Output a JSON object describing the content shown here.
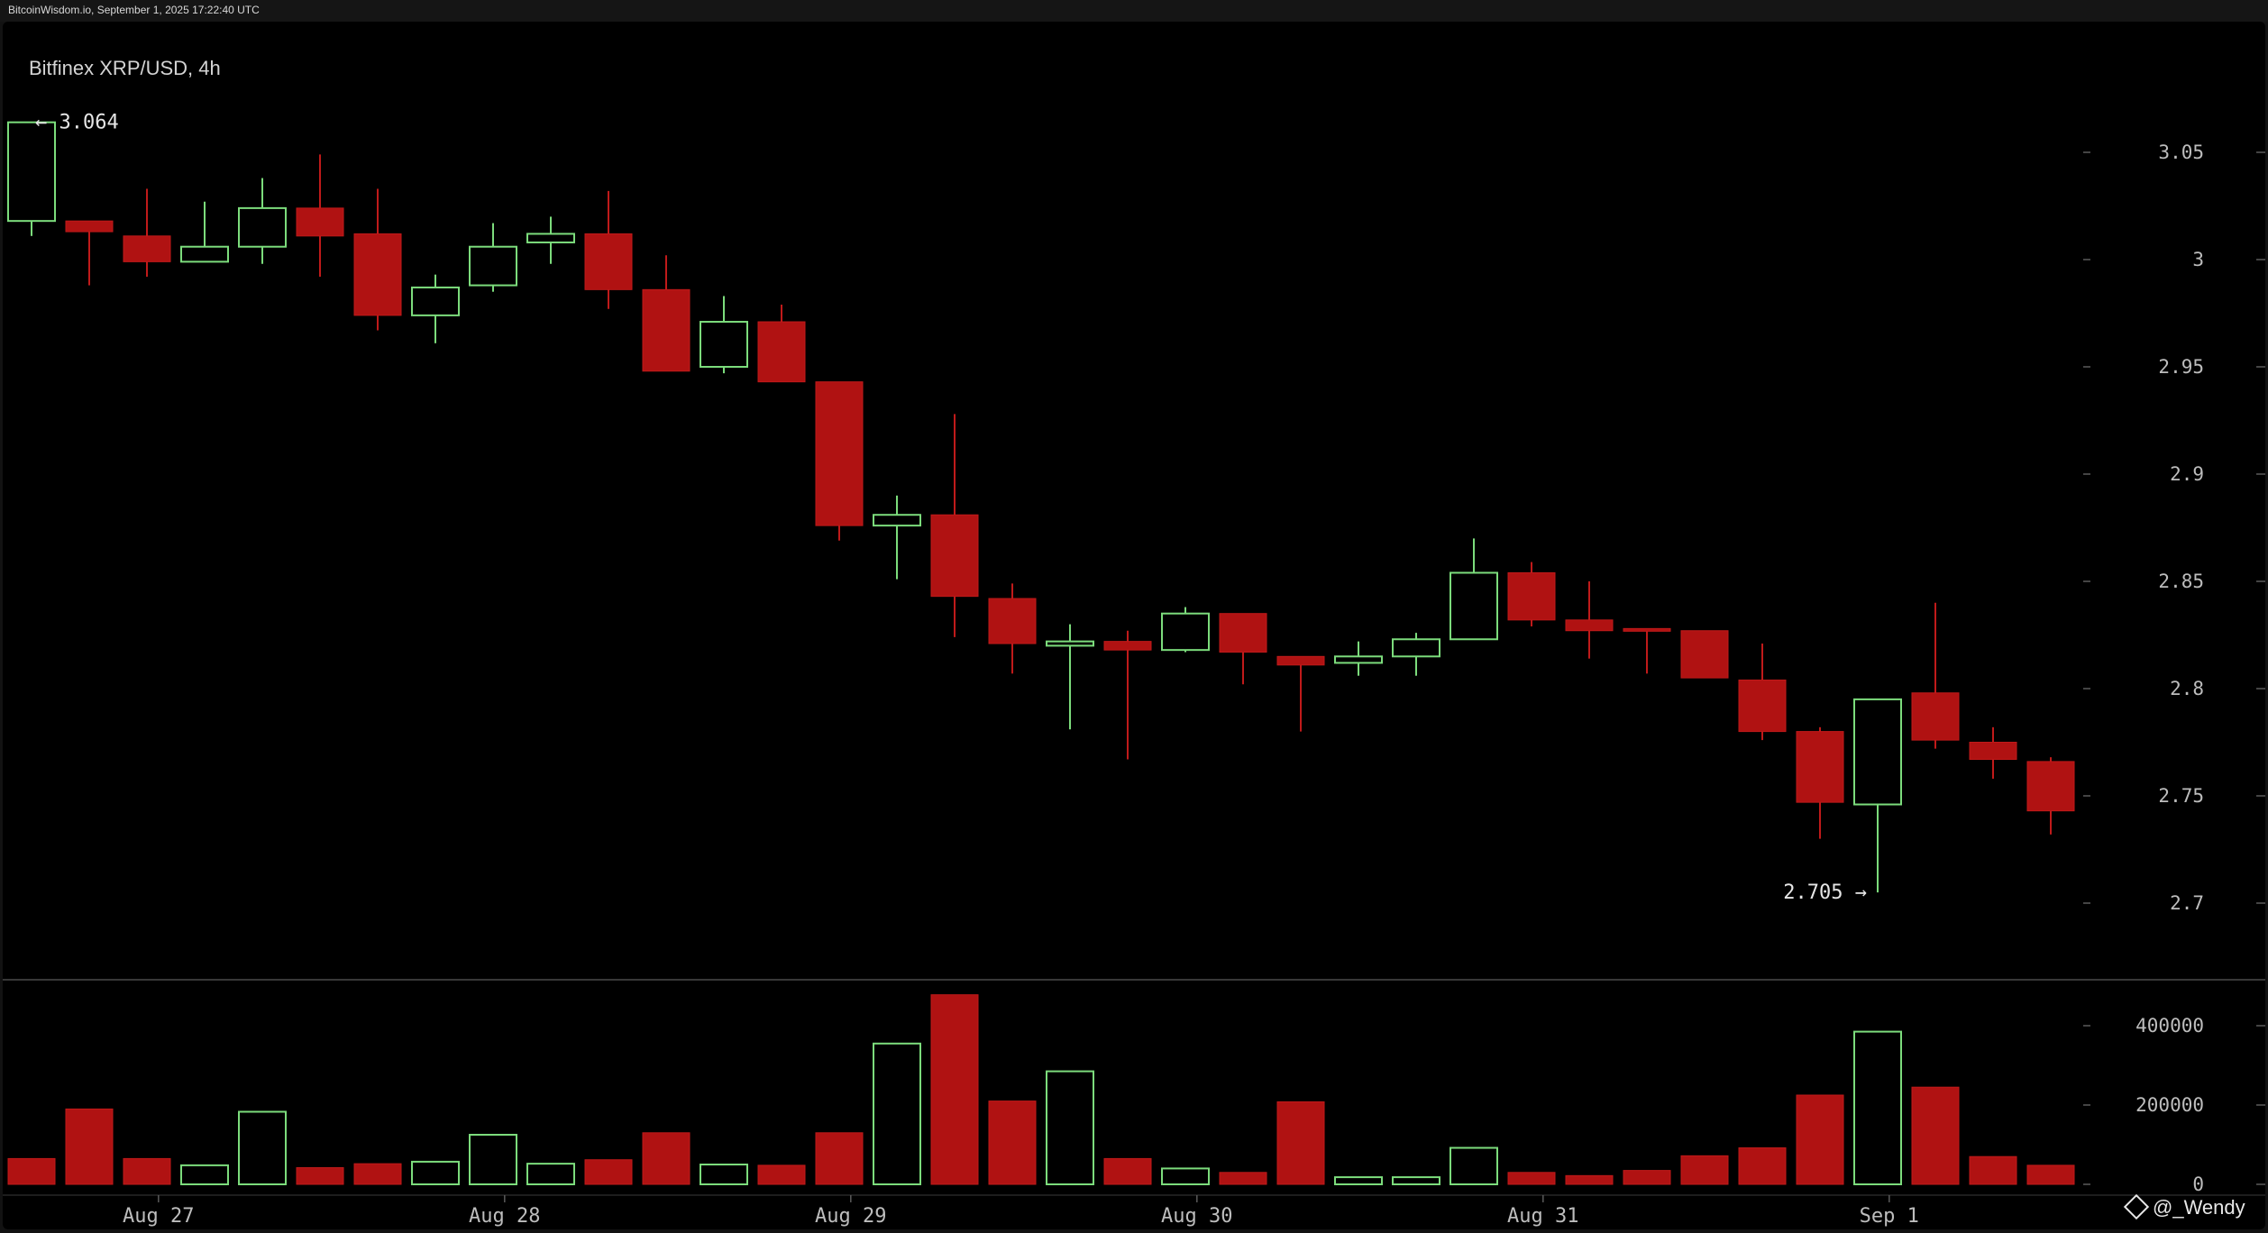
{
  "header": {
    "caption": "BitcoinWisdom.io, September 1, 2025 17:22:40 UTC"
  },
  "title": "Bitfinex XRP/USD, 4h",
  "watermark": "@_Wendy",
  "colors": {
    "up": "#7cdc7c",
    "down": "#b01212",
    "background": "#000000",
    "axis_text": "#bdbdbd"
  },
  "chart_data": [
    {
      "type": "candlestick",
      "title": "Bitfinex XRP/USD, 4h",
      "ylim": [
        2.68,
        3.07
      ],
      "y_ticks": [
        {
          "value": 3.05,
          "label": "3.05"
        },
        {
          "value": 3.0,
          "label": "3"
        },
        {
          "value": 2.95,
          "label": "2.95"
        },
        {
          "value": 2.9,
          "label": "2.9"
        },
        {
          "value": 2.85,
          "label": "2.85"
        },
        {
          "value": 2.8,
          "label": "2.8"
        },
        {
          "value": 2.75,
          "label": "2.75"
        },
        {
          "value": 2.7,
          "label": "2.7"
        }
      ],
      "x_ticks": [
        {
          "index": 2.2,
          "label": "Aug 27"
        },
        {
          "index": 8.2,
          "label": "Aug 28"
        },
        {
          "index": 14.2,
          "label": "Aug 29"
        },
        {
          "index": 20.2,
          "label": "Aug 30"
        },
        {
          "index": 26.2,
          "label": "Aug 31"
        },
        {
          "index": 32.2,
          "label": "Sep 1"
        }
      ],
      "annotations": [
        {
          "index": 0,
          "value": 3.064,
          "label": "← 3.064"
        },
        {
          "index": 32,
          "value": 2.705,
          "label": "2.705 →"
        }
      ],
      "candles": [
        {
          "o": 3.018,
          "h": 3.064,
          "l": 3.011,
          "c": 3.064
        },
        {
          "o": 3.018,
          "h": 3.016,
          "l": 2.988,
          "c": 3.013
        },
        {
          "o": 3.011,
          "h": 3.033,
          "l": 2.992,
          "c": 2.999
        },
        {
          "o": 2.999,
          "h": 3.027,
          "l": 2.999,
          "c": 3.006
        },
        {
          "o": 3.006,
          "h": 3.038,
          "l": 2.998,
          "c": 3.024
        },
        {
          "o": 3.024,
          "h": 3.049,
          "l": 2.992,
          "c": 3.011
        },
        {
          "o": 3.012,
          "h": 3.033,
          "l": 2.967,
          "c": 2.974
        },
        {
          "o": 2.974,
          "h": 2.993,
          "l": 2.961,
          "c": 2.987
        },
        {
          "o": 2.988,
          "h": 3.017,
          "l": 2.985,
          "c": 3.006
        },
        {
          "o": 3.008,
          "h": 3.02,
          "l": 2.998,
          "c": 3.012
        },
        {
          "o": 3.012,
          "h": 3.032,
          "l": 2.977,
          "c": 2.986
        },
        {
          "o": 2.986,
          "h": 3.002,
          "l": 2.948,
          "c": 2.948
        },
        {
          "o": 2.95,
          "h": 2.983,
          "l": 2.947,
          "c": 2.971
        },
        {
          "o": 2.971,
          "h": 2.979,
          "l": 2.943,
          "c": 2.943
        },
        {
          "o": 2.943,
          "h": 2.943,
          "l": 2.869,
          "c": 2.876
        },
        {
          "o": 2.876,
          "h": 2.89,
          "l": 2.851,
          "c": 2.881
        },
        {
          "o": 2.881,
          "h": 2.928,
          "l": 2.824,
          "c": 2.843
        },
        {
          "o": 2.842,
          "h": 2.849,
          "l": 2.807,
          "c": 2.821
        },
        {
          "o": 2.82,
          "h": 2.83,
          "l": 2.781,
          "c": 2.822
        },
        {
          "o": 2.822,
          "h": 2.827,
          "l": 2.767,
          "c": 2.818
        },
        {
          "o": 2.818,
          "h": 2.838,
          "l": 2.817,
          "c": 2.835
        },
        {
          "o": 2.835,
          "h": 2.835,
          "l": 2.802,
          "c": 2.817
        },
        {
          "o": 2.815,
          "h": 2.813,
          "l": 2.78,
          "c": 2.811
        },
        {
          "o": 2.812,
          "h": 2.822,
          "l": 2.806,
          "c": 2.815
        },
        {
          "o": 2.815,
          "h": 2.826,
          "l": 2.806,
          "c": 2.823
        },
        {
          "o": 2.823,
          "h": 2.87,
          "l": 2.823,
          "c": 2.854
        },
        {
          "o": 2.854,
          "h": 2.859,
          "l": 2.829,
          "c": 2.832
        },
        {
          "o": 2.832,
          "h": 2.85,
          "l": 2.814,
          "c": 2.827
        },
        {
          "o": 2.828,
          "h": 2.828,
          "l": 2.807,
          "c": 2.827
        },
        {
          "o": 2.827,
          "h": 2.827,
          "l": 2.805,
          "c": 2.805
        },
        {
          "o": 2.804,
          "h": 2.821,
          "l": 2.776,
          "c": 2.78
        },
        {
          "o": 2.78,
          "h": 2.782,
          "l": 2.73,
          "c": 2.747
        },
        {
          "o": 2.746,
          "h": 2.795,
          "l": 2.705,
          "c": 2.795
        },
        {
          "o": 2.798,
          "h": 2.84,
          "l": 2.772,
          "c": 2.776
        },
        {
          "o": 2.775,
          "h": 2.782,
          "l": 2.758,
          "c": 2.767
        },
        {
          "o": 2.766,
          "h": 2.768,
          "l": 2.732,
          "c": 2.743
        }
      ]
    },
    {
      "type": "bar",
      "title": "",
      "ylim": [
        0,
        480000
      ],
      "y_ticks": [
        {
          "value": 400000,
          "label": "400000"
        },
        {
          "value": 200000,
          "label": "200000"
        },
        {
          "value": 0,
          "label": "0"
        }
      ],
      "values": [
        65000,
        190000,
        65000,
        48000,
        183000,
        42000,
        52000,
        57000,
        125000,
        52000,
        62000,
        130000,
        50000,
        48000,
        130000,
        355000,
        478000,
        210000,
        285000,
        65000,
        40000,
        30000,
        208000,
        18000,
        18000,
        92000,
        30000,
        22000,
        35000,
        72000,
        92000,
        225000,
        385000,
        245000,
        70000,
        48000
      ],
      "directions": [
        "down",
        "down",
        "down",
        "up",
        "up",
        "down",
        "down",
        "up",
        "up",
        "up",
        "down",
        "down",
        "up",
        "down",
        "down",
        "up",
        "down",
        "down",
        "up",
        "down",
        "up",
        "down",
        "down",
        "up",
        "up",
        "up",
        "down",
        "down",
        "down",
        "down",
        "down",
        "down",
        "up",
        "down",
        "down",
        "down"
      ]
    }
  ]
}
